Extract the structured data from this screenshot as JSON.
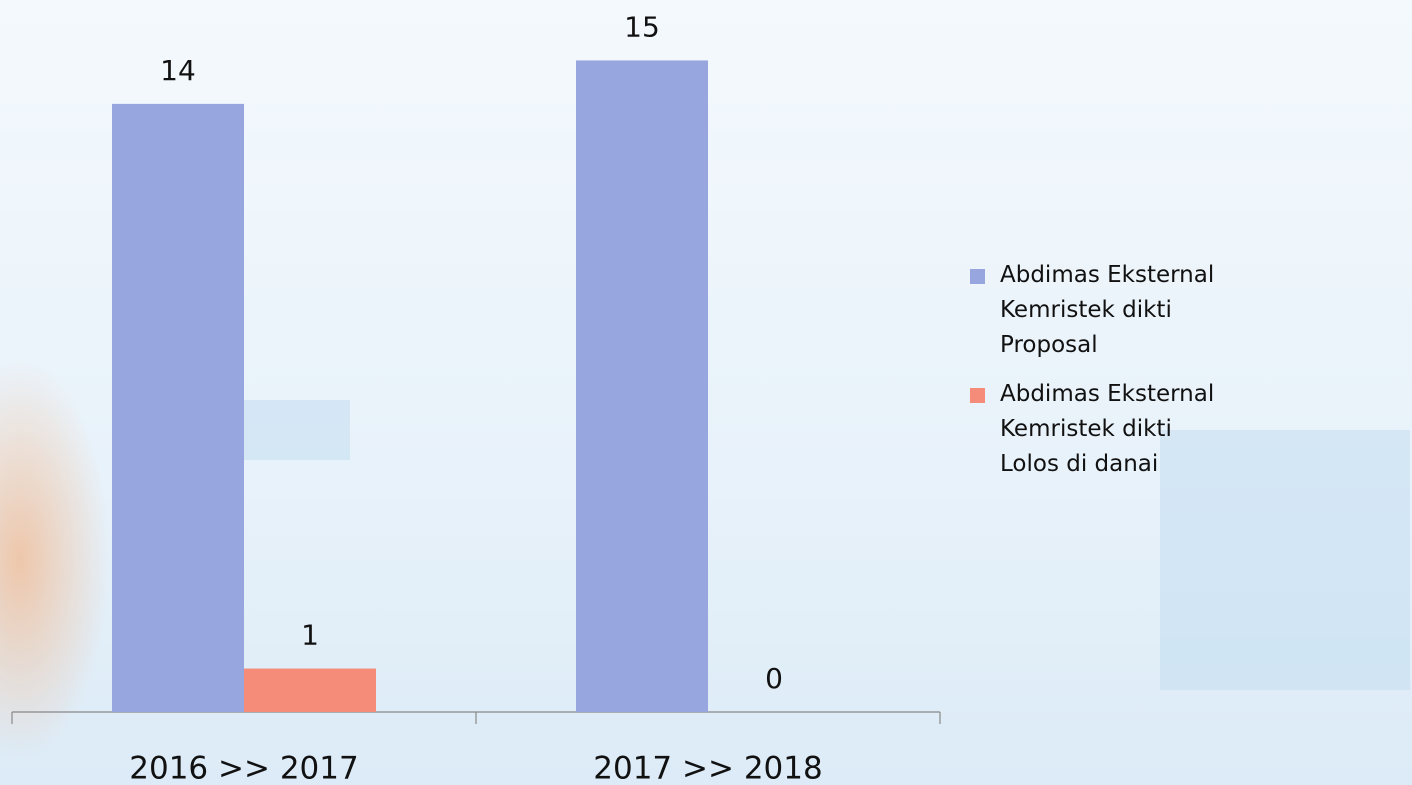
{
  "chart_data": {
    "type": "bar",
    "categories": [
      "2016 >> 2017",
      "2017 >> 2018"
    ],
    "series": [
      {
        "name": "Abdimas Eksternal Kemristek dikti Proposal",
        "color": "#97a6de",
        "values": [
          14,
          15
        ]
      },
      {
        "name": "Abdimas Eksternal Kemristek dikti Lolos di danai",
        "color": "#f58c7a",
        "values": [
          1,
          0
        ]
      }
    ],
    "ylim": [
      0,
      16
    ],
    "legend": "right"
  }
}
